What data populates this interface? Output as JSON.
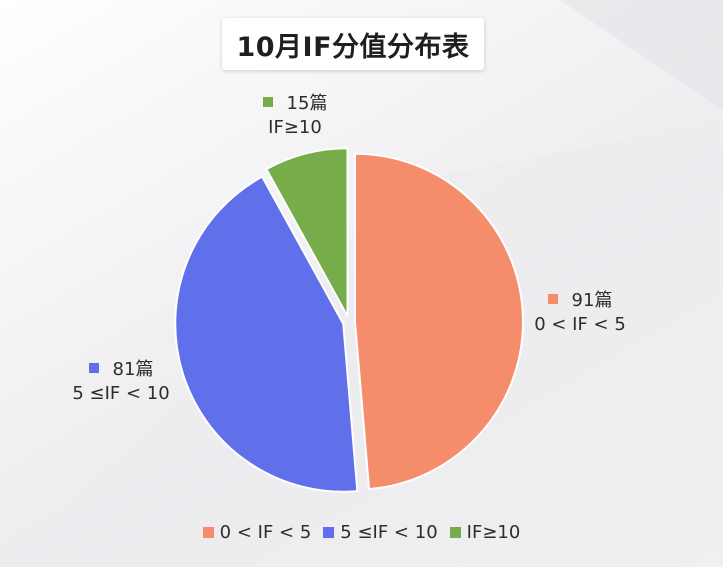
{
  "title": "10月IF分值分布表",
  "chart_data": {
    "type": "pie",
    "title": "10月IF分值分布表",
    "slices": [
      {
        "name": "0 < IF < 5",
        "value": 91,
        "value_label": "91篇",
        "color": "#f58d6c"
      },
      {
        "name": "5 ≤IF < 10",
        "value": 81,
        "value_label": "81篇",
        "color": "#6070ea"
      },
      {
        "name": "IF≥10",
        "value": 15,
        "value_label": "15篇",
        "color": "#76ac49"
      }
    ],
    "legend_position": "bottom"
  }
}
